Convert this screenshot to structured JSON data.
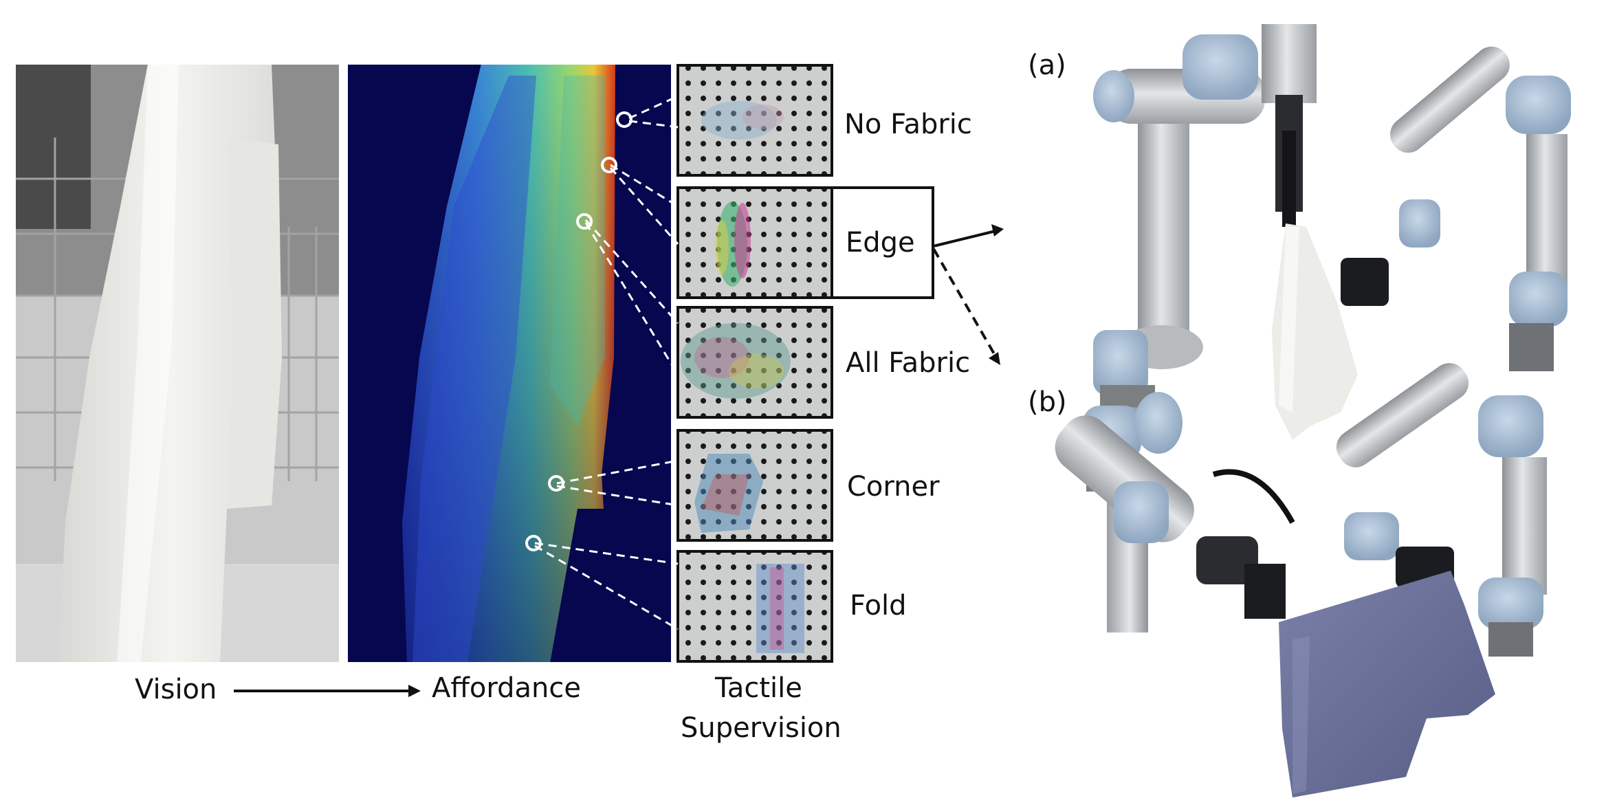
{
  "panel_labels": {
    "a": "(a)",
    "b": "(b)"
  },
  "tactile_categories": [
    "No Fabric",
    "Edge",
    "All Fabric",
    "Corner",
    "Fold"
  ],
  "selected_category": "Edge",
  "bottom_labels": {
    "vision": "Vision",
    "affordance": "Affordance",
    "tactile_line1": "Tactile",
    "tactile_line2": "Supervision"
  },
  "colors": {
    "affordance_background": "#06074f",
    "affordance_high": "#d93a1a",
    "affordance_mid": "#38b0b8",
    "affordance_low": "#2e4ad0",
    "robot_joint": "#9fb6cf",
    "robot_link": "#c7c9cc",
    "gray_wall": "#9a9a9a",
    "towel_white": "#efefec",
    "towel_blue": "#6c7199"
  },
  "icons": [
    "probe-point-icon",
    "arrow-right-icon",
    "dashed-arrow-icon",
    "gripper-icon"
  ]
}
